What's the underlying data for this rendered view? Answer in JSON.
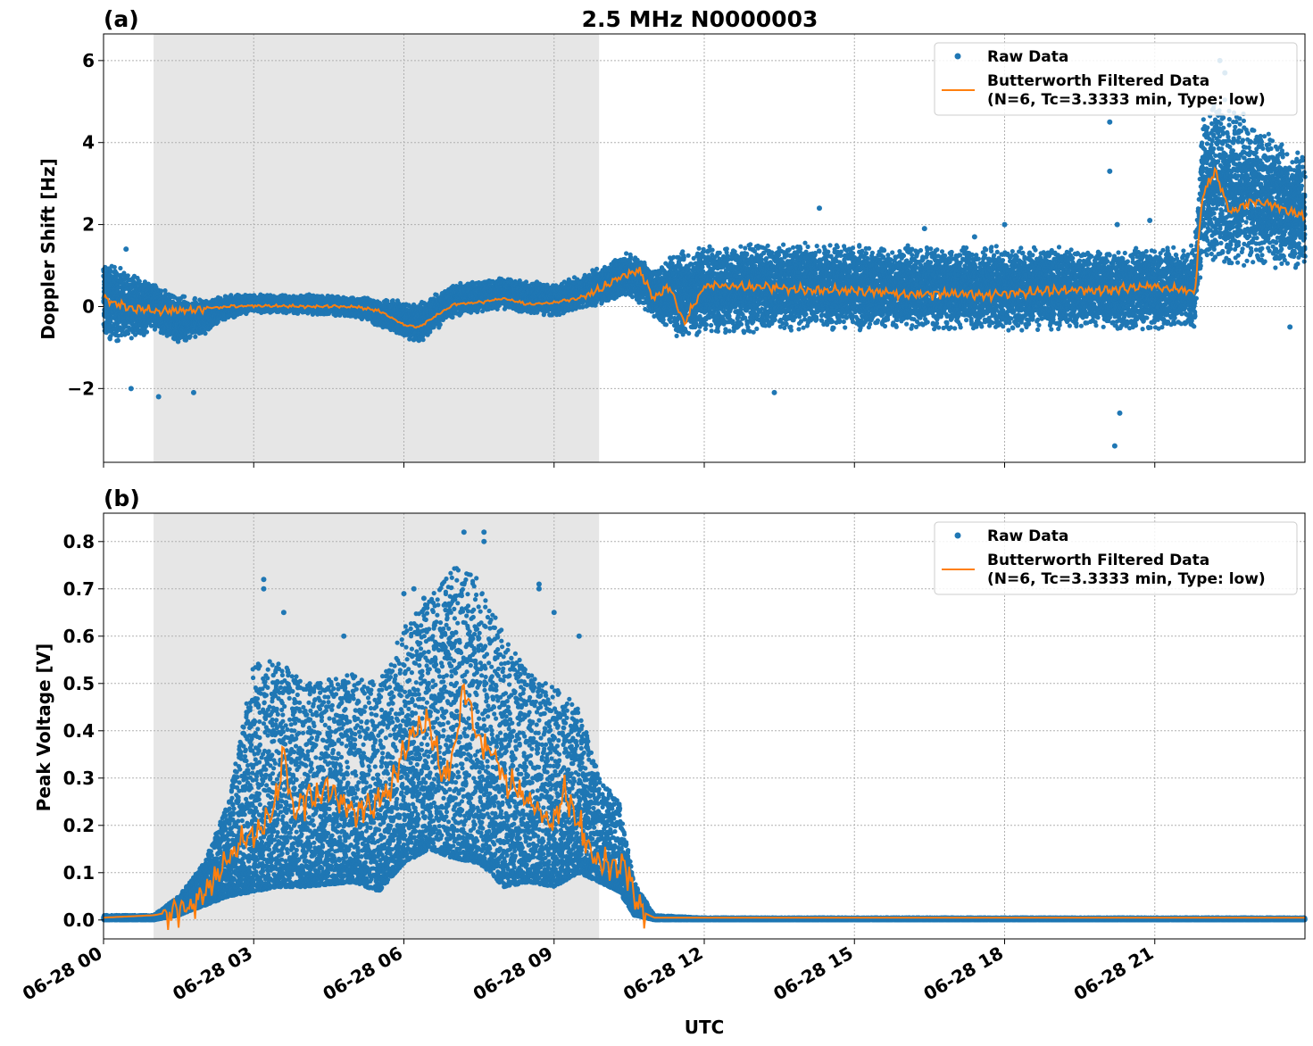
{
  "figure": {
    "title": "2.5 MHz N0000003",
    "xlabel": "UTC",
    "x_tick_labels": [
      "06-28 00",
      "06-28 03",
      "06-28 06",
      "06-28 09",
      "06-28 12",
      "06-28 15",
      "06-28 18",
      "06-28 21"
    ]
  },
  "colors": {
    "raw": "#1f77b4",
    "filtered": "#ff7f0e",
    "shade": "#e6e6e6"
  },
  "chart_data": [
    {
      "panel": "(a)",
      "type": "scatter",
      "title": "2.5 MHz N0000003",
      "xlabel": "UTC",
      "ylabel": "Doppler Shift [Hz]",
      "x_unit": "hours since 06-28 00:00 UTC",
      "xlim": [
        0,
        24
      ],
      "ylim": [
        -3.8,
        6.65
      ],
      "yticks": [
        -2,
        0,
        2,
        4,
        6
      ],
      "y_tick_labels": [
        "−2",
        "0",
        "2",
        "4",
        "6"
      ],
      "grid": true,
      "legend_position": "upper right",
      "shaded_interval": [
        1.0,
        9.9
      ],
      "series": [
        {
          "name": "Raw Data",
          "type": "scatter",
          "envelope_x": [
            0,
            1,
            1.5,
            2,
            2.5,
            3,
            4,
            5,
            5.5,
            6.3,
            7,
            8,
            9,
            9.9,
            10.5,
            11,
            11.5,
            12,
            14,
            16,
            18,
            20,
            21.8,
            21.95,
            22.3,
            23,
            24
          ],
          "envelope_low": [
            -0.9,
            -0.7,
            -0.9,
            -0.7,
            -0.3,
            -0.15,
            -0.2,
            -0.25,
            -0.5,
            -0.9,
            -0.25,
            -0.1,
            -0.25,
            0.0,
            0.25,
            -0.3,
            -0.8,
            -0.7,
            -0.6,
            -0.6,
            -0.6,
            -0.6,
            -0.6,
            1.0,
            0.8,
            0.9,
            0.9
          ],
          "envelope_high": [
            1.2,
            0.6,
            0.3,
            0.2,
            0.3,
            0.3,
            0.3,
            0.25,
            0.2,
            0.1,
            0.55,
            0.75,
            0.55,
            0.95,
            1.35,
            0.9,
            1.45,
            1.55,
            1.6,
            1.5,
            1.5,
            1.45,
            1.5,
            4.8,
            5.2,
            4.5,
            3.8
          ],
          "outliers": [
            [
              0.55,
              -2.0
            ],
            [
              1.1,
              -2.2
            ],
            [
              1.8,
              -2.1
            ],
            [
              0.45,
              1.4
            ],
            [
              14.3,
              2.4
            ],
            [
              13.4,
              -2.1
            ],
            [
              16.4,
              1.9
            ],
            [
              17.4,
              1.7
            ],
            [
              18.0,
              2.0
            ],
            [
              20.1,
              4.5
            ],
            [
              20.1,
              3.3
            ],
            [
              20.2,
              -3.4
            ],
            [
              20.3,
              -2.6
            ],
            [
              20.25,
              2.0
            ],
            [
              22.3,
              6.0
            ],
            [
              22.4,
              5.7
            ],
            [
              20.9,
              2.1
            ],
            [
              23.7,
              -0.5
            ]
          ]
        },
        {
          "name": "Butterworth Filtered Data\n(N=6, Tc=3.3333 min, Type: low)",
          "legend_lines": [
            "Butterworth Filtered Data",
            "(N=6, Tc=3.3333 min, Type: low)"
          ],
          "type": "line",
          "x": [
            0,
            0.5,
            1,
            1.5,
            2,
            2.5,
            3,
            4,
            5,
            5.5,
            6,
            6.3,
            6.8,
            7,
            7.5,
            8,
            8.5,
            9,
            9.5,
            9.9,
            10.3,
            10.7,
            11,
            11.3,
            11.6,
            12,
            13,
            14,
            15,
            16,
            17,
            18,
            19,
            20,
            21,
            21.8,
            21.95,
            22.2,
            22.5,
            23,
            23.5,
            24
          ],
          "y": [
            0.2,
            -0.05,
            -0.1,
            -0.1,
            -0.05,
            0.0,
            0.02,
            0.0,
            0.0,
            -0.1,
            -0.45,
            -0.5,
            -0.1,
            0.05,
            0.1,
            0.2,
            0.05,
            0.1,
            0.2,
            0.4,
            0.7,
            0.9,
            0.2,
            0.5,
            -0.4,
            0.5,
            0.5,
            0.4,
            0.4,
            0.3,
            0.3,
            0.3,
            0.4,
            0.4,
            0.5,
            0.35,
            2.7,
            3.3,
            2.3,
            2.6,
            2.4,
            2.2
          ]
        }
      ]
    },
    {
      "panel": "(b)",
      "type": "scatter",
      "title": "",
      "xlabel": "UTC",
      "ylabel": "Peak Voltage [V]",
      "x_unit": "hours since 06-28 00:00 UTC",
      "xlim": [
        0,
        24
      ],
      "ylim": [
        -0.04,
        0.86
      ],
      "yticks": [
        0.0,
        0.1,
        0.2,
        0.3,
        0.4,
        0.5,
        0.6,
        0.7,
        0.8
      ],
      "y_tick_labels": [
        "0.0",
        "0.1",
        "0.2",
        "0.3",
        "0.4",
        "0.5",
        "0.6",
        "0.7",
        "0.8"
      ],
      "grid": true,
      "legend_position": "upper right",
      "shaded_interval": [
        1.0,
        9.9
      ],
      "series": [
        {
          "name": "Raw Data",
          "type": "scatter",
          "envelope_x": [
            0,
            1,
            1.5,
            2,
            2.5,
            3,
            3.5,
            4,
            5,
            5.5,
            6,
            6.5,
            7,
            7.5,
            8,
            8.5,
            9,
            9.5,
            9.9,
            10.3,
            10.6,
            11,
            12,
            24
          ],
          "envelope_low": [
            0.0,
            0.0,
            0.01,
            0.03,
            0.05,
            0.06,
            0.07,
            0.07,
            0.08,
            0.06,
            0.12,
            0.15,
            0.13,
            0.12,
            0.07,
            0.08,
            0.07,
            0.1,
            0.08,
            0.06,
            0.01,
            0.0,
            0.0,
            0.0
          ],
          "envelope_high": [
            0.01,
            0.01,
            0.05,
            0.12,
            0.25,
            0.55,
            0.55,
            0.5,
            0.52,
            0.5,
            0.62,
            0.68,
            0.75,
            0.72,
            0.6,
            0.52,
            0.5,
            0.45,
            0.3,
            0.25,
            0.08,
            0.01,
            0.005,
            0.005
          ],
          "outliers": [
            [
              3.2,
              0.72
            ],
            [
              3.2,
              0.7
            ],
            [
              3.6,
              0.65
            ],
            [
              4.8,
              0.6
            ],
            [
              6.0,
              0.69
            ],
            [
              6.2,
              0.7
            ],
            [
              6.4,
              0.68
            ],
            [
              7.2,
              0.82
            ],
            [
              7.6,
              0.82
            ],
            [
              7.6,
              0.8
            ],
            [
              8.7,
              0.71
            ],
            [
              8.7,
              0.7
            ],
            [
              9.0,
              0.65
            ],
            [
              9.5,
              0.6
            ]
          ]
        },
        {
          "name": "Butterworth Filtered Data\n(N=6, Tc=3.3333 min, Type: low)",
          "legend_lines": [
            "Butterworth Filtered Data",
            "(N=6, Tc=3.3333 min, Type: low)"
          ],
          "type": "line",
          "x": [
            0,
            1,
            1.5,
            2,
            2.3,
            2.6,
            3,
            3.4,
            3.6,
            3.8,
            4,
            4.5,
            5,
            5.5,
            5.8,
            6,
            6.2,
            6.5,
            6.8,
            7,
            7.2,
            7.5,
            7.8,
            8,
            8.5,
            9,
            9.2,
            9.5,
            9.8,
            10.1,
            10.4,
            10.7,
            11,
            12,
            24
          ],
          "y": [
            0.005,
            0.01,
            0.02,
            0.05,
            0.1,
            0.15,
            0.18,
            0.22,
            0.36,
            0.22,
            0.25,
            0.28,
            0.22,
            0.25,
            0.3,
            0.35,
            0.4,
            0.42,
            0.3,
            0.35,
            0.5,
            0.38,
            0.35,
            0.3,
            0.25,
            0.2,
            0.28,
            0.2,
            0.13,
            0.11,
            0.12,
            0.02,
            0.005,
            0.005,
            0.005
          ]
        }
      ]
    }
  ]
}
